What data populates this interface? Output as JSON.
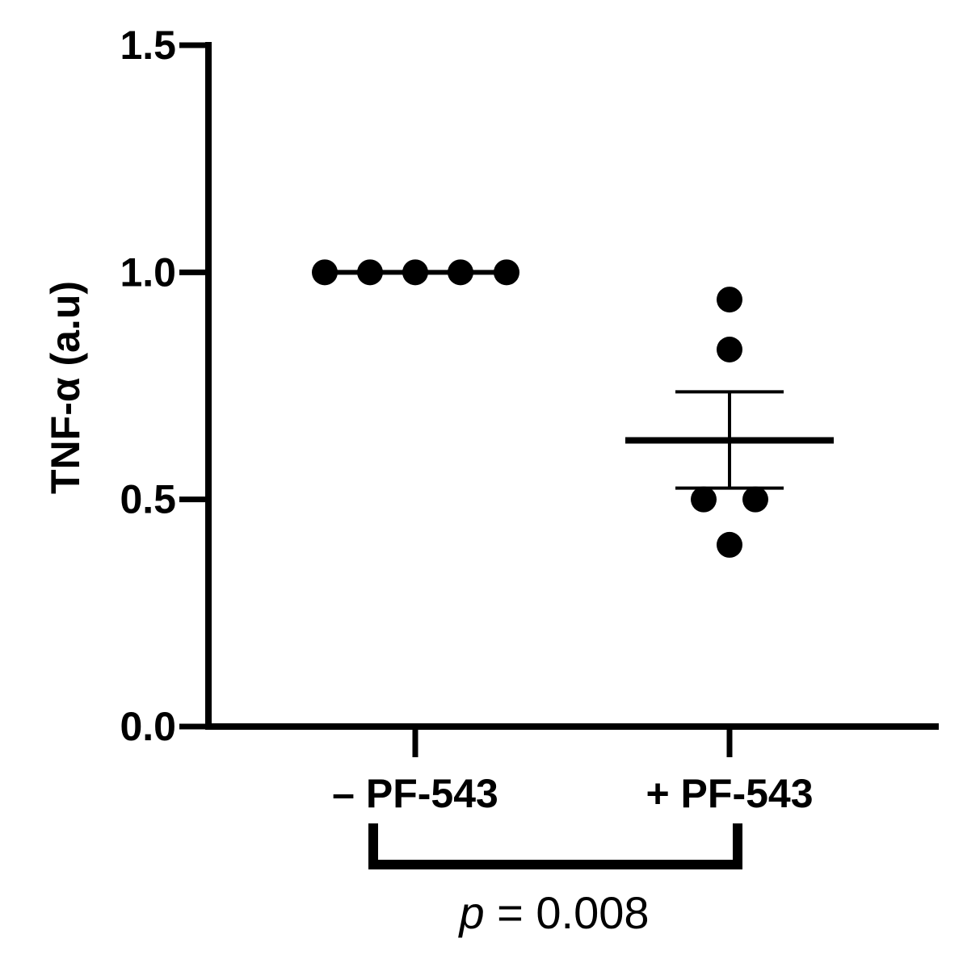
{
  "chart_data": {
    "type": "scatter",
    "ylabel": "TNF-α (a.u)",
    "ylim": [
      0,
      1.5
    ],
    "yticks": [
      "0.0",
      "0.5",
      "1.0",
      "1.5"
    ],
    "categories": [
      "– PF-543",
      "+ PF-543"
    ],
    "series": [
      {
        "category": "– PF-543",
        "values": [
          1.0,
          1.0,
          1.0,
          1.0,
          1.0
        ],
        "mean": 1.0,
        "sem": 0.0
      },
      {
        "category": "+ PF-543",
        "values": [
          0.94,
          0.83,
          0.5,
          0.5,
          0.4
        ],
        "mean": 0.63,
        "sem_low": 0.525,
        "sem_high": 0.737
      }
    ],
    "annotation": {
      "p_symbol": "p",
      "p_text": " = 0.008"
    },
    "marker_color": "#000000"
  }
}
